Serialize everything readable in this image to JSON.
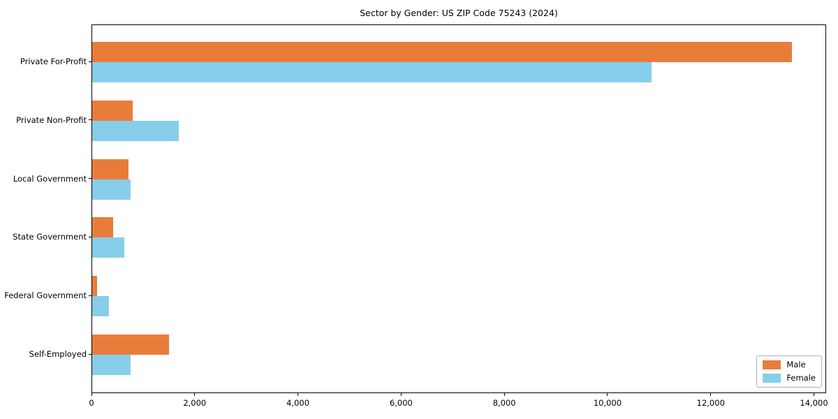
{
  "chart_data": {
    "type": "bar",
    "orientation": "horizontal",
    "title": "Sector by Gender: US ZIP Code 75243 (2024)",
    "categories": [
      "Private For-Profit",
      "Private Non-Profit",
      "Local Government",
      "State Government",
      "Federal Government",
      "Self-Employed"
    ],
    "series": [
      {
        "name": "Male",
        "color": "#E87D3B",
        "values": [
          13580,
          780,
          710,
          410,
          100,
          1490
        ]
      },
      {
        "name": "Female",
        "color": "#87CEEB",
        "values": [
          10860,
          1680,
          750,
          630,
          320,
          740
        ]
      }
    ],
    "xlabel": "",
    "ylabel": "",
    "xlim": [
      0,
      14236
    ],
    "xticks": [
      0,
      2000,
      4000,
      6000,
      8000,
      10000,
      12000,
      14000
    ],
    "xtick_labels": [
      "0",
      "2,000",
      "4,000",
      "6,000",
      "8,000",
      "10,000",
      "12,000",
      "14,000"
    ],
    "grid": false,
    "legend_position": "lower right",
    "legend_entries": [
      "Male",
      "Female"
    ]
  }
}
